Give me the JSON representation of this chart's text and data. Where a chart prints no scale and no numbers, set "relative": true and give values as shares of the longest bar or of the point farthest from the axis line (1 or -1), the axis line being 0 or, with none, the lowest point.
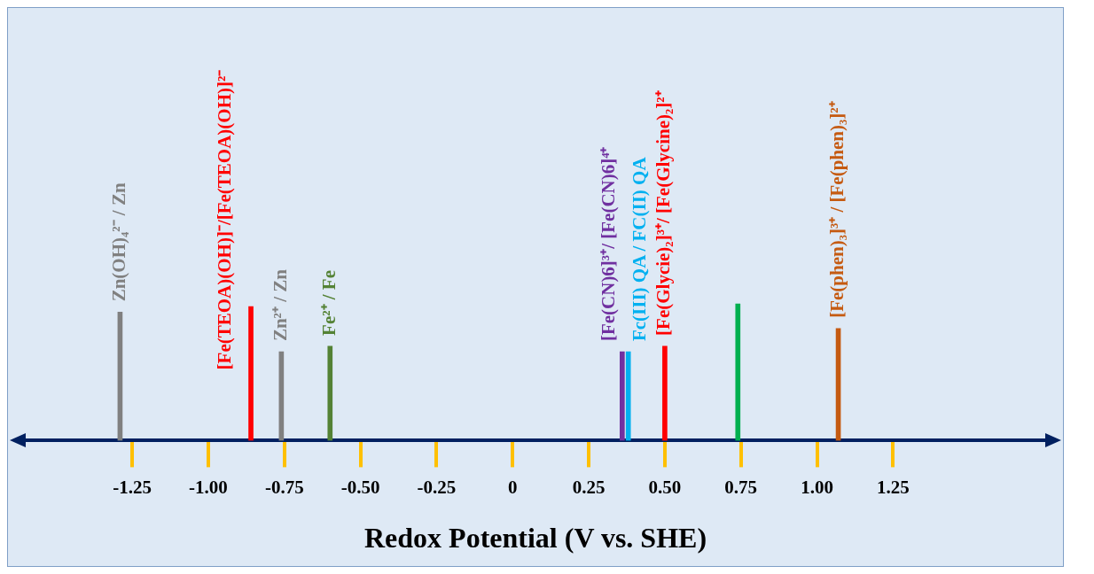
{
  "chart_data": {
    "type": "bar",
    "xlabel": "Redox Potential (V vs. SHE)",
    "x": [
      -1.29,
      -0.86,
      -0.76,
      -0.6,
      0.36,
      0.38,
      0.5,
      0.74,
      1.07
    ],
    "values": [
      0.94,
      0.98,
      0.65,
      0.69,
      0.65,
      0.65,
      0.69,
      1,
      0.82
    ],
    "colors": [
      "#808080",
      "#ff0000",
      "#808080",
      "#548235",
      "#7030a0",
      "#00b0f0",
      "#ff0000",
      "#00b050",
      "#c55a11"
    ],
    "relative": true,
    "xlim": [
      -1.6,
      1.75
    ],
    "xticks": [
      -1.25,
      {
        "value": -1,
        "label": "-1.00"
      },
      -0.75,
      {
        "value": -0.5,
        "label": "-0.50"
      },
      -0.25,
      0,
      0.25,
      {
        "value": 0.5,
        "label": "0.50"
      },
      0.75,
      {
        "value": 1,
        "label": "1.00"
      },
      1.25
    ],
    "annotations": [
      {
        "text": "Zn(OH)₄²⁻ / Zn",
        "x": -1.29,
        "y": 0.94
      },
      {
        "text": "[Fe(TEOA)(OH)]⁻/[Fe(TEOA)(OH)]²⁻",
        "x": -0.86,
        "y": 0.98
      },
      {
        "text": "Zn²⁺ / Zn",
        "x": -0.76,
        "y": 0.65
      },
      {
        "text": "Fe²⁺ / Fe",
        "x": -0.6,
        "y": 0.69
      },
      {
        "text": "[Fe(CN)6]³⁺/ [Fe(CN)6]⁴⁺",
        "x": 0.36,
        "y": 0.65
      },
      {
        "text": "Fc(III) QA / FC(II) QA",
        "x": 0.38,
        "y": 0.65
      },
      {
        "text": "[Fe(Glycie)₂]³⁺/ [Fe(Glycine)₂]²⁺",
        "x": 0.5,
        "y": 0.69
      },
      {
        "text": "[Fe(phen)₃]³⁺ / [Fe(phen)₃]²⁺",
        "x": 1.07,
        "y": 0.82
      }
    ]
  }
}
